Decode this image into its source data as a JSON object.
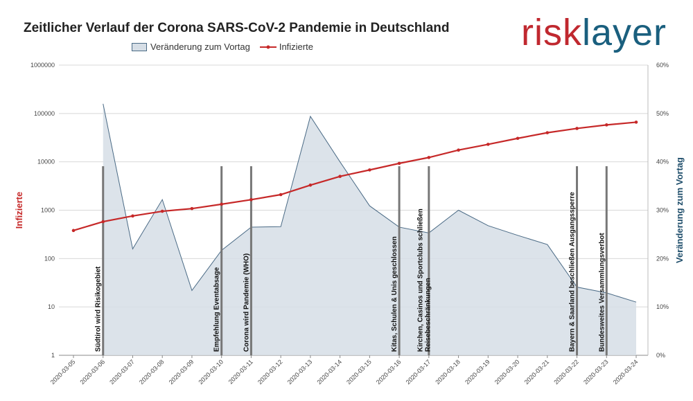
{
  "chart_data": {
    "type": "line",
    "title": "Zeitlicher Verlauf der Corona SARS-CoV-2 Pandemie in Deutschland",
    "x": [
      "2020-03-05",
      "2020-03-06",
      "2020-03-07",
      "2020-03-08",
      "2020-03-09",
      "2020-03-10",
      "2020-03-11",
      "2020-03-12",
      "2020-03-13",
      "2020-03-14",
      "2020-03-15",
      "2020-03-16",
      "2020-03-17",
      "2020-03-18",
      "2020-03-19",
      "2020-03-20",
      "2020-03-21",
      "2020-03-22",
      "2020-03-23",
      "2020-03-24"
    ],
    "y_left_label": "Infizierte",
    "y_right_label": "Veränderung zum Vortag",
    "y_left_scale": "log",
    "y_left_ticks": [
      "1",
      "10",
      "100",
      "1000",
      "10000",
      "100000",
      "1000000"
    ],
    "y_left_lim": [
      1,
      1000000
    ],
    "y_right_ticks": [
      "0%",
      "10%",
      "20%",
      "30%",
      "40%",
      "50%",
      "60%"
    ],
    "y_right_lim": [
      0,
      60
    ],
    "series": [
      {
        "name": "Veränderung zum Vortag",
        "type": "area",
        "axis": "right",
        "color": "#d6dee6",
        "stroke": "#4a6a85",
        "values": [
          null,
          52.0,
          22.0,
          32.2,
          13.4,
          21.7,
          26.5,
          26.6,
          49.4,
          40.0,
          30.9,
          26.5,
          25.3,
          30.0,
          26.8,
          24.8,
          22.9,
          14.1,
          12.9,
          11.0
        ]
      },
      {
        "name": "Infizierte",
        "type": "line",
        "axis": "left",
        "color": "#c62828",
        "values": [
          380,
          580,
          760,
          950,
          1080,
          1330,
          1650,
          2100,
          3300,
          5000,
          6800,
          9300,
          12300,
          17500,
          23000,
          30600,
          40000,
          49000,
          58000,
          66000
        ]
      }
    ],
    "annotations": [
      {
        "x": "2020-03-06",
        "text": "Südtirol wird Risikogebiet"
      },
      {
        "x": "2020-03-10",
        "text": "Empfehlung Eventabsage"
      },
      {
        "x": "2020-03-11",
        "text": "Corona wird Pandemie (WHO)"
      },
      {
        "x": "2020-03-16",
        "text": "Kitas, Schulen & Unis geschlossen"
      },
      {
        "x": "2020-03-17",
        "text": "Kirchen, Casinos und Sportclubs schließen|Reisebeschränkungen"
      },
      {
        "x": "2020-03-22",
        "text": "Bayern & Saarland beschließen Ausgangssperre"
      },
      {
        "x": "2020-03-23",
        "text": "Bundesweites Versammlungsverbot"
      }
    ],
    "legend_position": "top-center",
    "grid": true
  },
  "logo": {
    "part1": "risk",
    "part2": "layer"
  }
}
